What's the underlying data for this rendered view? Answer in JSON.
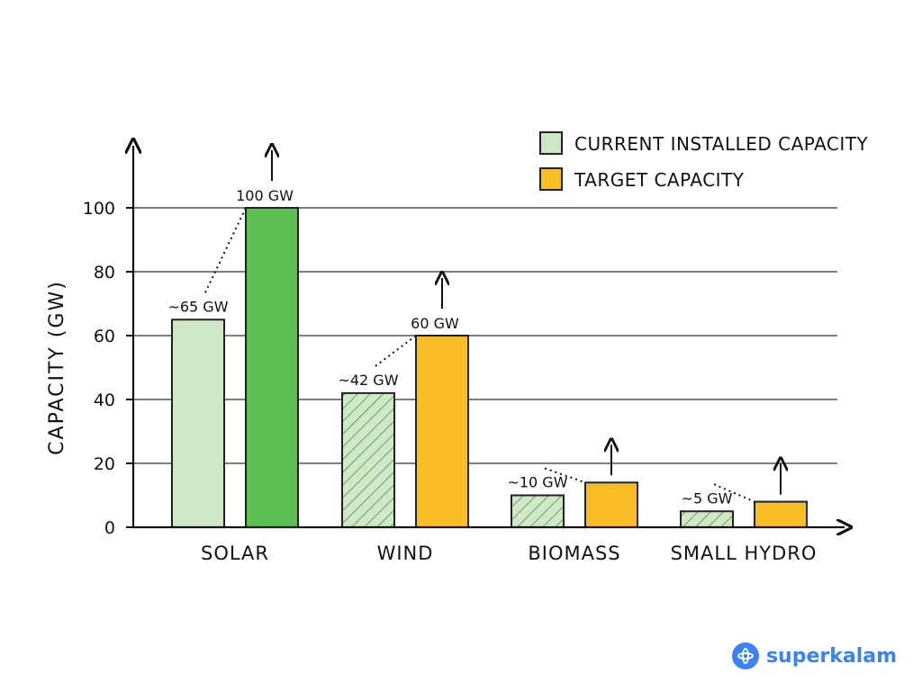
{
  "chart_data": {
    "type": "bar",
    "categories": [
      "SOLAR",
      "WIND",
      "BIOMASS",
      "SMALL HYDRO"
    ],
    "series": [
      {
        "name": "CURRENT INSTALLED CAPACITY",
        "values": [
          65,
          42,
          10,
          5
        ],
        "labels": [
          "~65 GW",
          "~42 GW",
          "~10 GW",
          "~5 GW"
        ]
      },
      {
        "name": "TARGET CAPACITY",
        "values": [
          100,
          60,
          14,
          8
        ],
        "labels": [
          "100 GW",
          "60 GW",
          "",
          ""
        ]
      }
    ],
    "ylabel": "CAPACITY (GW)",
    "xlabel": "",
    "ylim": [
      0,
      100
    ],
    "yticks": [
      0,
      20,
      40,
      60,
      80,
      100
    ],
    "grid": true,
    "legend_position": "top-right",
    "colors": {
      "current": [
        "#cfe8c6",
        "#cfe8c6",
        "#cfe8c6",
        "#cfe8c6"
      ],
      "target": [
        "#5cbf52",
        "#f8bc24",
        "#f8bc24",
        "#f8bc24"
      ],
      "legend_current": "#cfe8c6",
      "legend_target": "#f8bc24",
      "hatch": "#3d8f3d"
    },
    "hatched_current": [
      false,
      true,
      true,
      true
    ]
  },
  "brand": {
    "text": "superkalam",
    "icon": "atom-icon"
  }
}
